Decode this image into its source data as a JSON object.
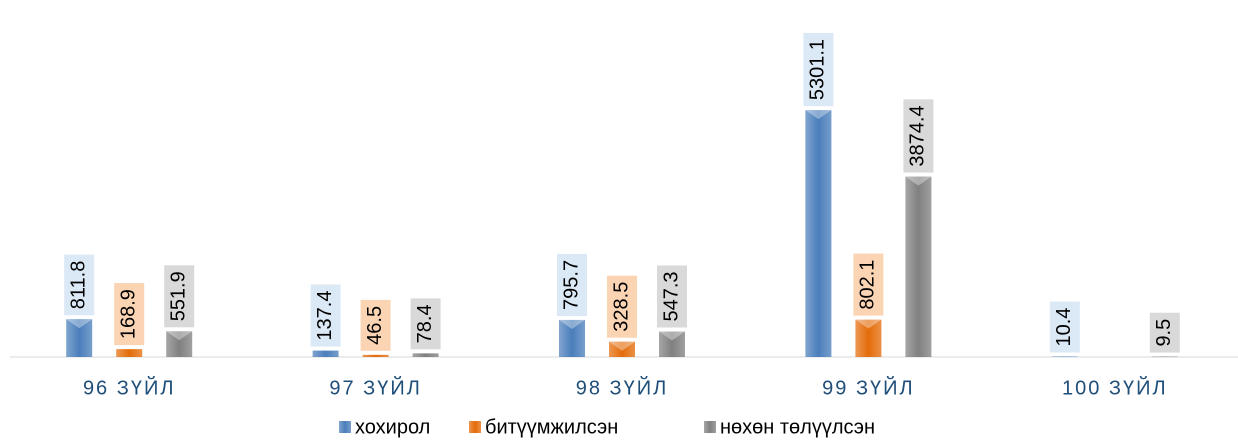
{
  "chart_data": {
    "type": "bar",
    "categories": [
      "96 ЗҮЙЛ",
      "97 ЗҮЙЛ",
      "98 ЗҮЙЛ",
      "99 ЗҮЙЛ",
      "100 ЗҮЙЛ"
    ],
    "series": [
      {
        "name": "хохирол",
        "color": "#4a7ebb",
        "values": [
          811.8,
          137.4,
          795.7,
          5301.1,
          10.4
        ]
      },
      {
        "name": "битүүмжилсэн",
        "color": "#e46c0a",
        "values": [
          168.9,
          46.5,
          328.5,
          802.1,
          null
        ]
      },
      {
        "name": "нөхөн төлүүлсэн",
        "color": "#808080",
        "values": [
          551.9,
          78.4,
          547.3,
          3874.4,
          9.5
        ]
      }
    ],
    "ylim": [
      0,
      7000
    ]
  }
}
